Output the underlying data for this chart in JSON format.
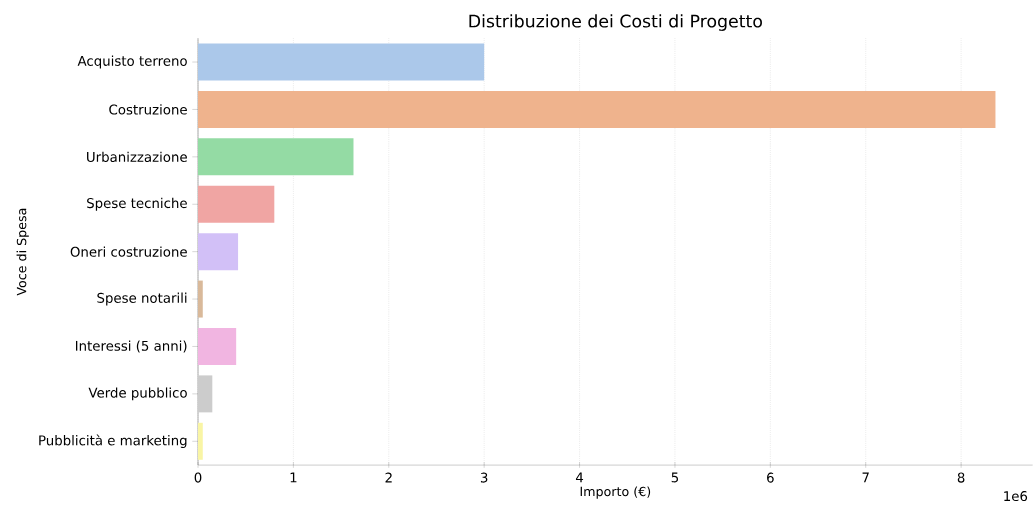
{
  "chart_data": {
    "type": "bar",
    "orientation": "horizontal",
    "title": "Distribuzione dei Costi di Progetto",
    "xlabel": "Importo (€)",
    "ylabel": "Voce di Spesa",
    "categories": [
      "Acquisto terreno",
      "Costruzione",
      "Urbanizzazione",
      "Spese tecniche",
      "Oneri costruzione",
      "Spese notarili",
      "Interessi (5 anni)",
      "Verde pubblico",
      "Pubblicità e marketing"
    ],
    "values": [
      3.0,
      8.36,
      1.63,
      0.8,
      0.42,
      0.05,
      0.4,
      0.15,
      0.05
    ],
    "colors": [
      "#abc8ea",
      "#efb38d",
      "#94dba4",
      "#f0a5a3",
      "#d2c0f7",
      "#d9b99a",
      "#f1b5e1",
      "#cccccc",
      "#f9f5a5"
    ],
    "xlim": [
      0,
      8.75
    ],
    "xticks": [
      0,
      1,
      2,
      3,
      4,
      5,
      6,
      7,
      8
    ],
    "grid": "x",
    "annotations": [
      "1e6"
    ]
  }
}
